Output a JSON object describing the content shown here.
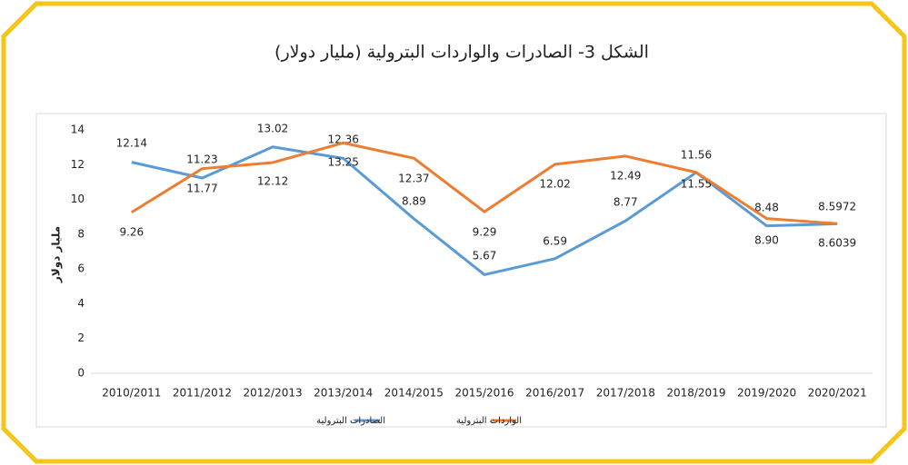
{
  "chart_data": {
    "type": "line",
    "title": "الشكل 3- الصادرات والواردات البترولية (مليار دولار)",
    "y_label": "مليار دولار",
    "categories": [
      "2010/2011",
      "2011/2012",
      "2012/2013",
      "2013/2014",
      "2014/2015",
      "2015/2016",
      "2016/2017",
      "2017/2018",
      "2018/2019",
      "2019/2020",
      "2020/2021"
    ],
    "series": [
      {
        "name": "الصادرات البترولية",
        "color": "#5b9bd5",
        "values": [
          12.14,
          11.23,
          13.02,
          12.36,
          8.89,
          5.67,
          6.59,
          8.77,
          11.55,
          8.48,
          8.5972
        ],
        "value_labels": [
          "12.14",
          "11.23",
          "13.02",
          "12.36",
          "8.89",
          "5.67",
          "6.59",
          "8.77",
          "11.55",
          "8.48",
          "8.5972"
        ]
      },
      {
        "name": "الواردات البترولية",
        "color": "#ed7d31",
        "values": [
          9.26,
          11.77,
          12.12,
          13.25,
          12.37,
          9.29,
          12.02,
          12.49,
          11.56,
          8.9,
          8.6039
        ],
        "value_labels": [
          "9.26",
          "11.77",
          "12.12",
          "13.25",
          "12.37",
          "9.29",
          "12.02",
          "12.49",
          "11.56",
          "8.90",
          "8.6039"
        ]
      }
    ],
    "ylim": [
      0,
      14
    ],
    "yticks": [
      0,
      2,
      4,
      6,
      8,
      10,
      12,
      14
    ],
    "grid": false,
    "legend": "bottom"
  }
}
